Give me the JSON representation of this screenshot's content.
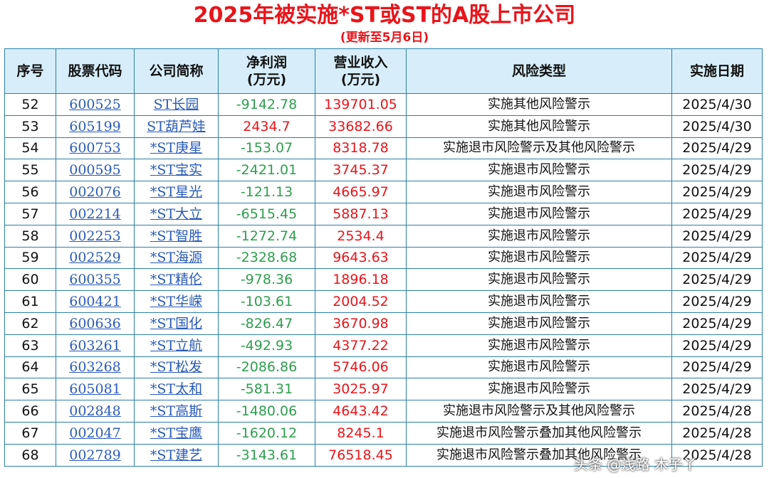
{
  "title": "2025年被实施*ST或ST的A股上市公司",
  "subtitle": "(更新至5月6日)",
  "headers": {
    "index": "序号",
    "code": "股票代码",
    "name": "公司简称",
    "profit": [
      "净利润",
      "(万元)"
    ],
    "revenue": [
      "营业收入",
      "(万元)"
    ],
    "risk": "风险类型",
    "date": "实施日期"
  },
  "colors": {
    "title": "#e8151b",
    "positive": "#e8151b",
    "negative": "#2e9e4f",
    "link": "#2a5bb8",
    "header_bg": "#d7eefa",
    "border": "#2c7fa8"
  },
  "rows": [
    {
      "idx": "52",
      "code": "600525",
      "name": "ST长园",
      "profit": "-9142.78",
      "revenue": "139701.05",
      "risk": "实施其他风险警示",
      "date": "2025/4/30"
    },
    {
      "idx": "53",
      "code": "605199",
      "name": "ST葫芦娃",
      "profit": "2434.7",
      "revenue": "33682.66",
      "risk": "实施其他风险警示",
      "date": "2025/4/30"
    },
    {
      "idx": "54",
      "code": "600753",
      "name": "*ST庚星",
      "profit": "-153.07",
      "revenue": "8318.78",
      "risk": "实施退市风险警示及其他风险警示",
      "date": "2025/4/29"
    },
    {
      "idx": "55",
      "code": "000595",
      "name": "*ST宝实",
      "profit": "-2421.01",
      "revenue": "3745.37",
      "risk": "实施退市风险警示",
      "date": "2025/4/29"
    },
    {
      "idx": "56",
      "code": "002076",
      "name": "*ST星光",
      "profit": "-121.13",
      "revenue": "4665.97",
      "risk": "实施退市风险警示",
      "date": "2025/4/29"
    },
    {
      "idx": "57",
      "code": "002214",
      "name": "*ST大立",
      "profit": "-6515.45",
      "revenue": "5887.13",
      "risk": "实施退市风险警示",
      "date": "2025/4/29"
    },
    {
      "idx": "58",
      "code": "002253",
      "name": "*ST智胜",
      "profit": "-1272.74",
      "revenue": "2534.4",
      "risk": "实施退市风险警示",
      "date": "2025/4/29"
    },
    {
      "idx": "59",
      "code": "002529",
      "name": "*ST海源",
      "profit": "-2328.68",
      "revenue": "9643.63",
      "risk": "实施退市风险警示",
      "date": "2025/4/29"
    },
    {
      "idx": "60",
      "code": "600355",
      "name": "*ST精伦",
      "profit": "-978.36",
      "revenue": "1896.18",
      "risk": "实施退市风险警示",
      "date": "2025/4/29"
    },
    {
      "idx": "61",
      "code": "600421",
      "name": "*ST华嵘",
      "profit": "-103.61",
      "revenue": "2004.52",
      "risk": "实施退市风险警示",
      "date": "2025/4/29"
    },
    {
      "idx": "62",
      "code": "600636",
      "name": "*ST国化",
      "profit": "-826.47",
      "revenue": "3670.98",
      "risk": "实施退市风险警示",
      "date": "2025/4/29"
    },
    {
      "idx": "63",
      "code": "603261",
      "name": "*ST立航",
      "profit": "-492.93",
      "revenue": "4377.22",
      "risk": "实施退市风险警示",
      "date": "2025/4/29"
    },
    {
      "idx": "64",
      "code": "603268",
      "name": "*ST松发",
      "profit": "-2086.86",
      "revenue": "5746.06",
      "risk": "实施退市风险警示",
      "date": "2025/4/29"
    },
    {
      "idx": "65",
      "code": "605081",
      "name": "*ST太和",
      "profit": "-581.31",
      "revenue": "3025.97",
      "risk": "实施退市风险警示",
      "date": "2025/4/29"
    },
    {
      "idx": "66",
      "code": "002848",
      "name": "*ST高斯",
      "profit": "-1480.06",
      "revenue": "4643.42",
      "risk": "实施退市风险警示及其他风险警示",
      "date": "2025/4/28"
    },
    {
      "idx": "67",
      "code": "002047",
      "name": "*ST宝鹰",
      "profit": "-1620.12",
      "revenue": "8245.1",
      "risk": "实施退市风险警示叠加其他风险警示",
      "date": "2025/4/28"
    },
    {
      "idx": "68",
      "code": "002789",
      "name": "*ST建艺",
      "profit": "-3143.61",
      "revenue": "76518.45",
      "risk": "实施退市风险警示叠加其他风险警示",
      "date": "2025/4/28"
    }
  ],
  "watermark": "头条 @浅路 木子丫"
}
